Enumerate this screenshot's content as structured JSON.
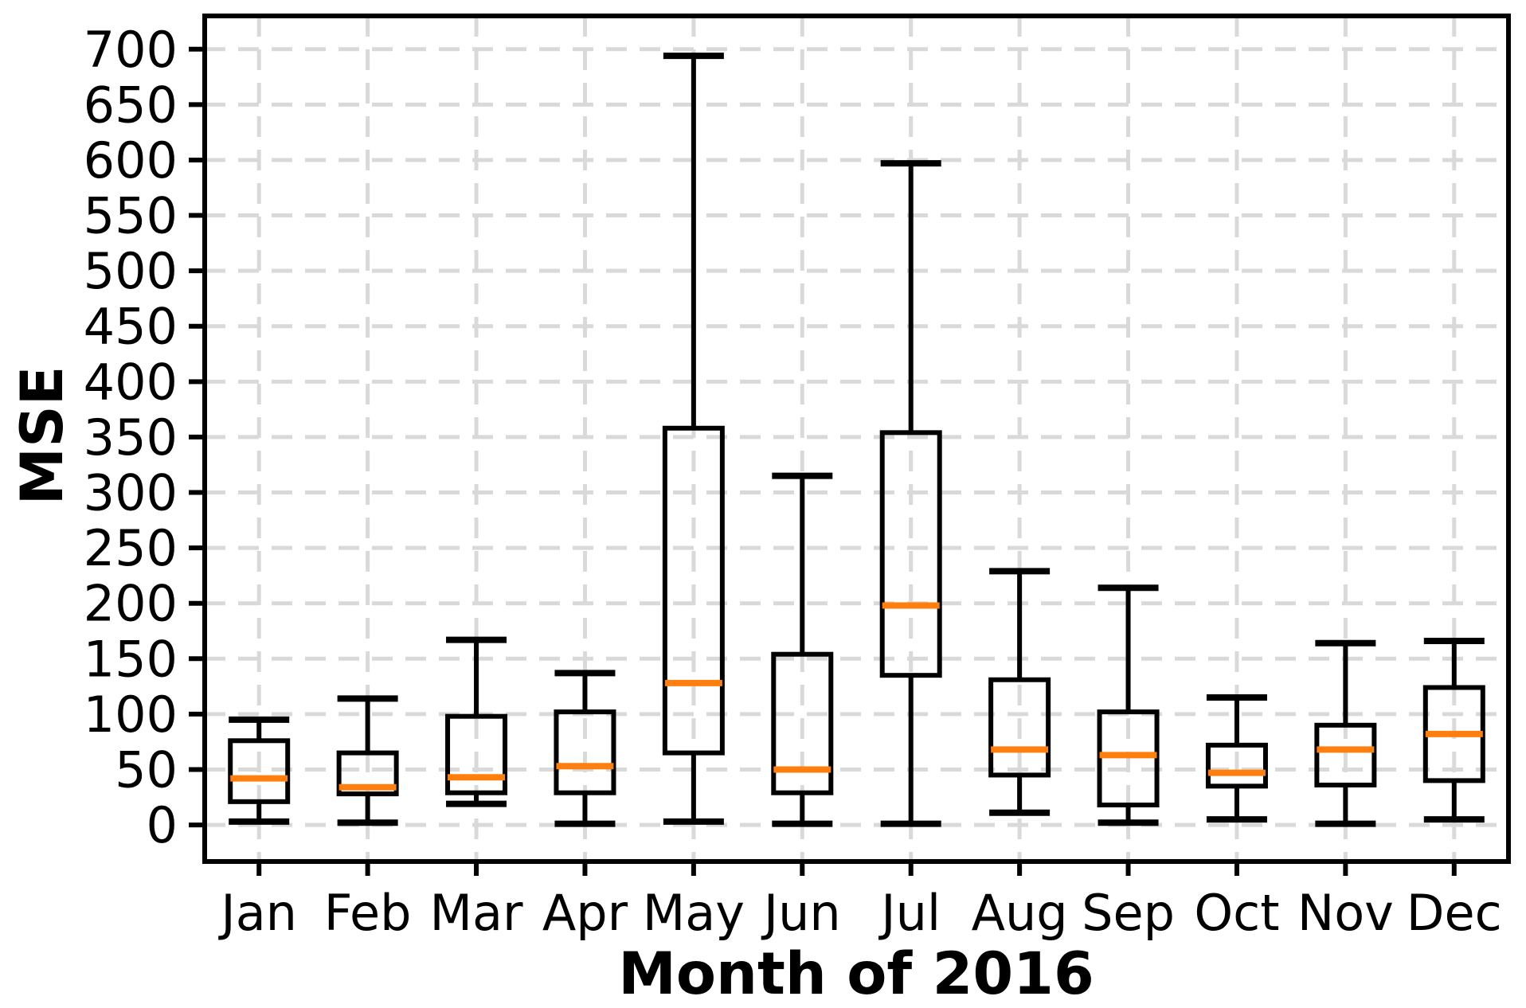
{
  "chart_data": {
    "type": "box",
    "title": "",
    "xlabel": "Month of 2016",
    "ylabel": "MSE",
    "categories": [
      "Jan",
      "Feb",
      "Mar",
      "Apr",
      "May",
      "Jun",
      "Jul",
      "Aug",
      "Sep",
      "Oct",
      "Nov",
      "Dec"
    ],
    "series": [
      {
        "month": "Jan",
        "whislo": 3,
        "q1": 21,
        "med": 42,
        "q3": 76,
        "whishi": 95
      },
      {
        "month": "Feb",
        "whislo": 2,
        "q1": 28,
        "med": 34,
        "q3": 65,
        "whishi": 114
      },
      {
        "month": "Mar",
        "whislo": 19,
        "q1": 29,
        "med": 43,
        "q3": 98,
        "whishi": 167
      },
      {
        "month": "Apr",
        "whislo": 1,
        "q1": 29,
        "med": 53,
        "q3": 102,
        "whishi": 137
      },
      {
        "month": "May",
        "whislo": 3,
        "q1": 65,
        "med": 128,
        "q3": 358,
        "whishi": 694
      },
      {
        "month": "Jun",
        "whislo": 1,
        "q1": 29,
        "med": 50,
        "q3": 154,
        "whishi": 315
      },
      {
        "month": "Jul",
        "whislo": 1,
        "q1": 135,
        "med": 198,
        "q3": 354,
        "whishi": 597
      },
      {
        "month": "Aug",
        "whislo": 11,
        "q1": 45,
        "med": 68,
        "q3": 131,
        "whishi": 229
      },
      {
        "month": "Sep",
        "whislo": 2,
        "q1": 18,
        "med": 63,
        "q3": 102,
        "whishi": 214
      },
      {
        "month": "Oct",
        "whislo": 5,
        "q1": 35,
        "med": 47,
        "q3": 72,
        "whishi": 115
      },
      {
        "month": "Nov",
        "whislo": 1,
        "q1": 36,
        "med": 68,
        "q3": 90,
        "whishi": 164
      },
      {
        "month": "Dec",
        "whislo": 5,
        "q1": 40,
        "med": 82,
        "q3": 124,
        "whishi": 166
      }
    ],
    "ylim": [
      -33,
      730
    ],
    "yticks": [
      0,
      50,
      100,
      150,
      200,
      250,
      300,
      350,
      400,
      450,
      500,
      550,
      600,
      650,
      700
    ],
    "grid": true,
    "grid_style": "dashed",
    "legend_position": "none",
    "colors": {
      "median": "#ff7f0e",
      "box": "#000000",
      "grid": "#d9d9d9",
      "background": "#ffffff"
    }
  }
}
